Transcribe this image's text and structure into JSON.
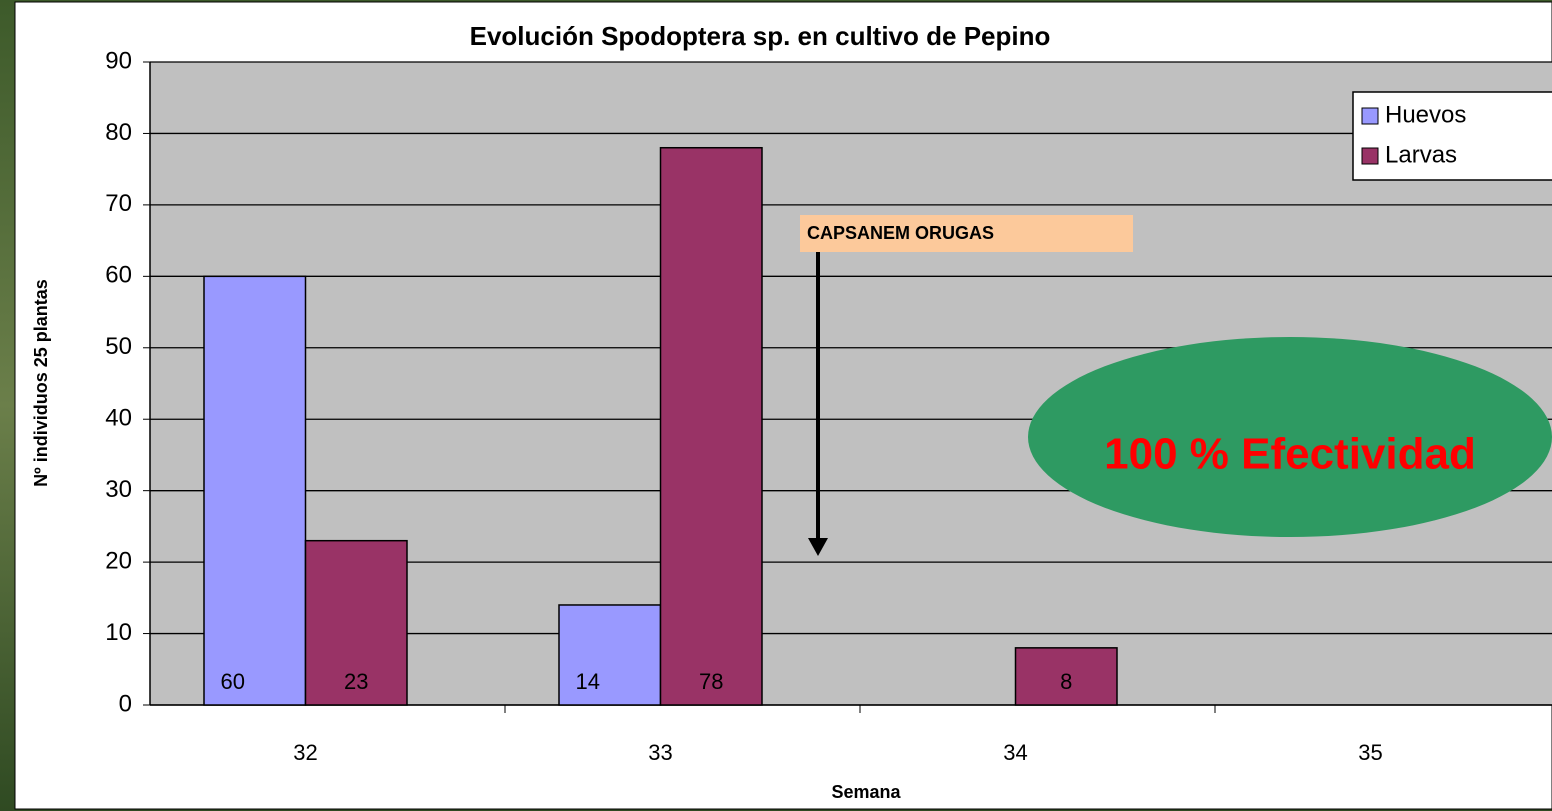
{
  "chart_data": {
    "type": "bar",
    "title": "Evolución Spodoptera sp. en cultivo de Pepino",
    "x_label": "Semana",
    "y_label": "Nº individuos 25 plantas",
    "categories": [
      "32",
      "33",
      "34",
      "35"
    ],
    "series": [
      {
        "name": "Huevos",
        "color": "#9999ff",
        "values": [
          60,
          14,
          null,
          null
        ]
      },
      {
        "name": "Larvas",
        "color": "#993366",
        "values": [
          23,
          78,
          8,
          null
        ]
      }
    ],
    "ylim": [
      0,
      90
    ],
    "yticks": [
      0,
      10,
      20,
      30,
      40,
      50,
      60,
      70,
      80,
      90
    ],
    "grid": true,
    "legend": "top-right",
    "annotations": [
      "CAPSANEM ORUGAS",
      "100 % Efectividad"
    ]
  }
}
